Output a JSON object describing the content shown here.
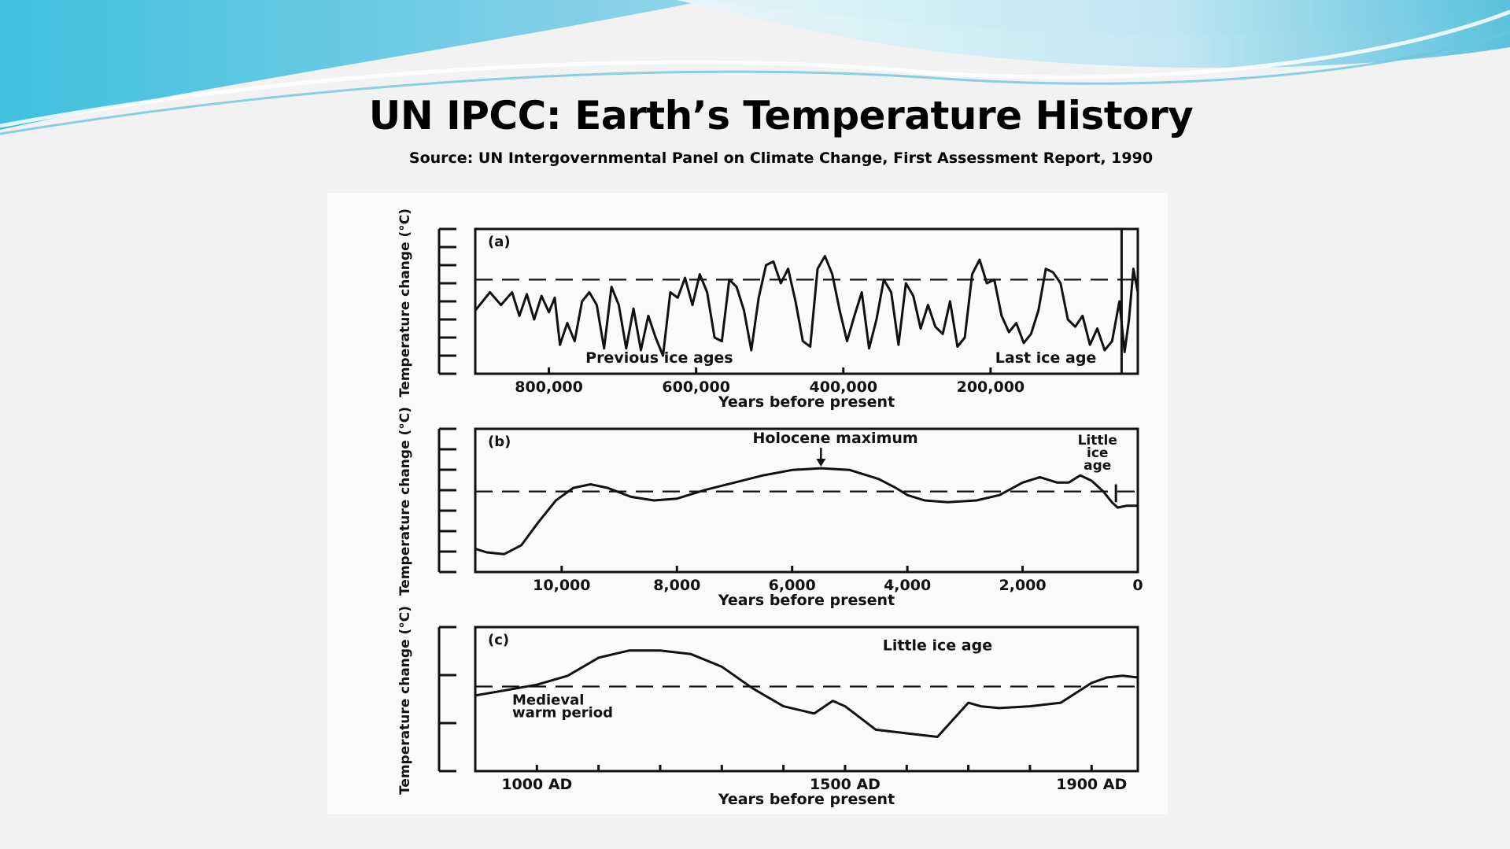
{
  "slide": {
    "title": "UN IPCC: Earth’s Temperature History",
    "subtitle": "Source: UN Intergovernmental Panel on Climate Change, First Assessment Report, 1990"
  },
  "colors": {
    "banner_light": "#d8f1f8",
    "banner_mid": "#8fd3e8",
    "banner_dark": "#3fb6d6",
    "ink": "#111111",
    "background": "#f2f2f2"
  },
  "chart_data": [
    {
      "type": "line",
      "panel_label": "(a)",
      "ylabel": "Temperature change (°C)",
      "xlabel": "Years before present",
      "x_reversed": true,
      "xlim": [
        900000,
        0
      ],
      "ylim": [
        0,
        8
      ],
      "x_tick_labels": [
        "800,000",
        "600,000",
        "400,000",
        "200,000"
      ],
      "x_tick_values": [
        800000,
        600000,
        400000,
        200000
      ],
      "reference_level": 5.2,
      "annotations": [
        {
          "text": "Previous ice ages",
          "x": 650000,
          "y": 0.6
        },
        {
          "text": "Last ice age",
          "x": 125000,
          "y": 0.6
        }
      ],
      "vertical_line_x": 22000,
      "series": [
        {
          "x": [
            900000,
            880000,
            865000,
            850000,
            840000,
            830000,
            820000,
            810000,
            800000,
            792000,
            785000,
            775000,
            765000,
            755000,
            745000,
            735000,
            725000,
            715000,
            705000,
            695000,
            685000,
            675000,
            665000,
            655000,
            645000,
            635000,
            625000,
            615000,
            605000,
            595000,
            585000,
            575000,
            565000,
            555000,
            545000,
            535000,
            525000,
            515000,
            505000,
            495000,
            485000,
            475000,
            465000,
            455000,
            445000,
            435000,
            425000,
            415000,
            405000,
            395000,
            385000,
            375000,
            365000,
            355000,
            345000,
            335000,
            325000,
            315000,
            305000,
            295000,
            285000,
            275000,
            265000,
            255000,
            245000,
            235000,
            225000,
            215000,
            205000,
            195000,
            185000,
            175000,
            165000,
            155000,
            145000,
            135000,
            125000,
            115000,
            105000,
            95000,
            85000,
            75000,
            65000,
            55000,
            45000,
            35000,
            25000,
            18000,
            12000,
            6000,
            0
          ],
          "y": [
            3.5,
            4.5,
            3.8,
            4.5,
            3.2,
            4.4,
            3.0,
            4.3,
            3.4,
            4.2,
            1.6,
            2.8,
            1.8,
            4.0,
            4.5,
            3.8,
            1.4,
            4.8,
            3.8,
            1.4,
            3.6,
            1.3,
            3.2,
            2.0,
            1.0,
            4.5,
            4.2,
            5.3,
            3.8,
            5.5,
            4.5,
            2.0,
            1.8,
            5.2,
            4.8,
            3.5,
            1.3,
            4.2,
            6.0,
            6.2,
            5.0,
            5.8,
            4.0,
            1.8,
            1.5,
            5.8,
            6.5,
            5.5,
            3.5,
            1.8,
            3.2,
            4.5,
            1.4,
            3.0,
            5.2,
            4.5,
            1.6,
            5.0,
            4.3,
            2.5,
            3.8,
            2.6,
            2.2,
            4.0,
            1.5,
            2.0,
            5.5,
            6.3,
            5.0,
            5.2,
            3.2,
            2.3,
            2.8,
            1.7,
            2.2,
            3.5,
            5.8,
            5.6,
            5.0,
            3.0,
            2.6,
            3.2,
            1.6,
            2.5,
            1.3,
            1.8,
            4.0,
            1.2,
            3.0,
            5.8,
            4.5
          ]
        }
      ]
    },
    {
      "type": "line",
      "panel_label": "(b)",
      "ylabel": "Temperature change (°C)",
      "xlabel": "Years before present",
      "x_reversed": true,
      "xlim": [
        11500,
        0
      ],
      "ylim": [
        0,
        8
      ],
      "x_tick_labels": [
        "10,000",
        "8,000",
        "6,000",
        "4,000",
        "2,000",
        "0"
      ],
      "x_tick_values": [
        10000,
        8000,
        6000,
        4000,
        2000,
        0
      ],
      "reference_level": 4.5,
      "annotations": [
        {
          "text": "Holocene maximum",
          "x": 5250,
          "y": 7.2,
          "arrow_to": [
            5500,
            5.8
          ]
        },
        {
          "text": "Little ice age",
          "x": 700,
          "y": 7.2
        }
      ],
      "vertical_line_x": 380,
      "series": [
        {
          "x": [
            11500,
            11300,
            11000,
            10700,
            10400,
            10100,
            9800,
            9500,
            9200,
            8800,
            8400,
            8000,
            7500,
            7000,
            6500,
            6000,
            5500,
            5000,
            4500,
            4200,
            4000,
            3700,
            3300,
            2800,
            2400,
            2000,
            1700,
            1400,
            1200,
            1000,
            800,
            600,
            450,
            350,
            200,
            0
          ],
          "y": [
            1.3,
            1.1,
            1.0,
            1.5,
            2.8,
            4.0,
            4.7,
            4.9,
            4.7,
            4.2,
            4.0,
            4.1,
            4.6,
            5.0,
            5.4,
            5.7,
            5.8,
            5.7,
            5.2,
            4.7,
            4.3,
            4.0,
            3.9,
            4.0,
            4.3,
            5.0,
            5.3,
            5.0,
            5.0,
            5.4,
            5.1,
            4.5,
            3.9,
            3.6,
            3.7,
            3.7
          ]
        }
      ]
    },
    {
      "type": "line",
      "panel_label": "(c)",
      "ylabel": "Temperature change (°C)",
      "xlabel": "Years before present",
      "x_reversed": false,
      "xlim": [
        900,
        1975
      ],
      "ylim": [
        0,
        8
      ],
      "x_tick_labels": [
        "1000 AD",
        "1500 AD",
        "1900 AD"
      ],
      "x_tick_values": [
        1000,
        1500,
        1900
      ],
      "reference_level": 4.7,
      "annotations": [
        {
          "text": "Little ice age",
          "x": 1650,
          "y": 6.7
        },
        {
          "text": "Medieval warm period",
          "x": 960,
          "y": 3.7
        }
      ],
      "series": [
        {
          "x": [
            900,
            950,
            1000,
            1050,
            1100,
            1150,
            1200,
            1250,
            1300,
            1350,
            1400,
            1450,
            1480,
            1500,
            1550,
            1600,
            1650,
            1700,
            1720,
            1750,
            1800,
            1850,
            1900,
            1925,
            1950,
            1975
          ],
          "y": [
            4.2,
            4.5,
            4.8,
            5.3,
            6.3,
            6.7,
            6.7,
            6.5,
            5.8,
            4.6,
            3.6,
            3.2,
            3.9,
            3.6,
            2.3,
            2.1,
            1.9,
            3.8,
            3.6,
            3.5,
            3.6,
            3.8,
            4.9,
            5.2,
            5.3,
            5.2
          ]
        }
      ]
    }
  ]
}
